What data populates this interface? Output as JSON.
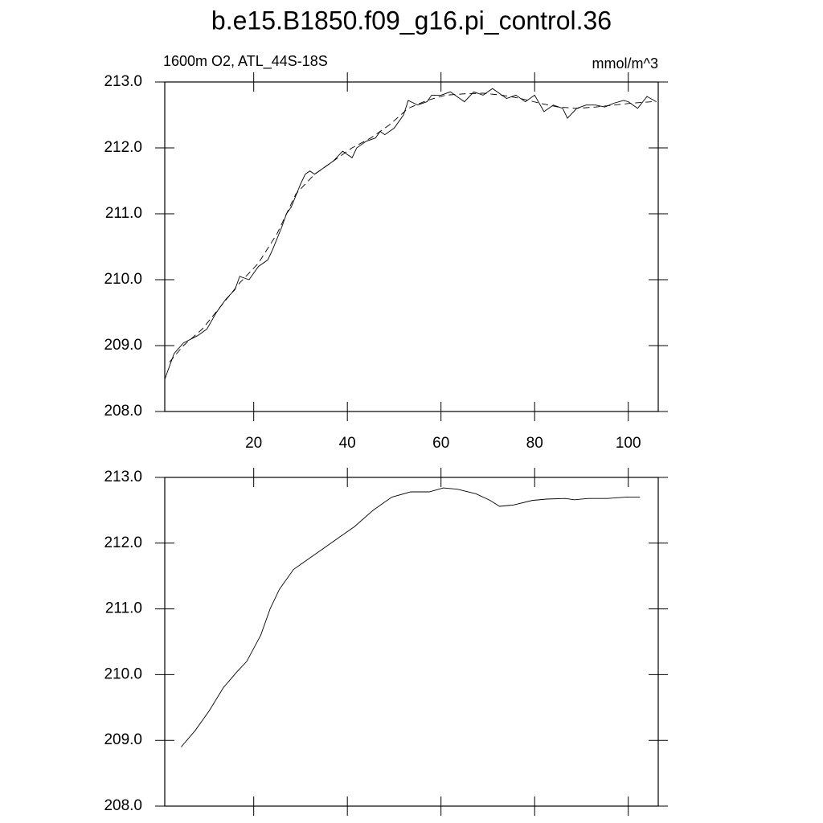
{
  "chart_data": [
    {
      "type": "line",
      "title": "b.e15.B1850.f09_g16.pi_control.36",
      "subtitle": "1600m O2, ATL_44S-18S",
      "units": "mmol/m^3",
      "xlim": [
        1,
        106.4
      ],
      "ylim": [
        208,
        213
      ],
      "xticks": [
        20,
        40,
        60,
        80,
        100
      ],
      "yticks": [
        {
          "value": 208,
          "label": "208.0"
        },
        {
          "value": 209,
          "label": "209.0"
        },
        {
          "value": 210,
          "label": "210.0"
        },
        {
          "value": 211,
          "label": "211.0"
        },
        {
          "value": 212,
          "label": "212.0"
        },
        {
          "value": 213,
          "label": "213.0"
        }
      ],
      "series": [
        {
          "color": "#000000",
          "dashed": false,
          "x": [
            1,
            3,
            5,
            8,
            10,
            12,
            14,
            16,
            17,
            19,
            21,
            23,
            24,
            26,
            27,
            28,
            30,
            31,
            32,
            33,
            35,
            37,
            39,
            40,
            41,
            42,
            44,
            46,
            47,
            48,
            50,
            52,
            53,
            55,
            57,
            58,
            60,
            62,
            64,
            65,
            67,
            69,
            70,
            71,
            72,
            74,
            76,
            78,
            80,
            82,
            84,
            86,
            87,
            89,
            91,
            93,
            95,
            97,
            99,
            100,
            102,
            104,
            106
          ],
          "values": [
            208.49,
            208.88,
            209.04,
            209.15,
            209.25,
            209.5,
            209.7,
            209.85,
            210.05,
            210.0,
            210.2,
            210.3,
            210.45,
            210.8,
            211.0,
            211.1,
            211.45,
            211.6,
            211.65,
            211.6,
            211.7,
            211.8,
            211.95,
            211.9,
            211.85,
            212.0,
            212.1,
            212.15,
            212.25,
            212.2,
            212.3,
            212.5,
            212.72,
            212.65,
            212.7,
            212.8,
            212.8,
            212.85,
            212.75,
            212.7,
            212.85,
            212.8,
            212.85,
            212.9,
            212.85,
            212.75,
            212.8,
            212.7,
            212.8,
            212.55,
            212.65,
            212.6,
            212.45,
            212.6,
            212.65,
            212.65,
            212.62,
            212.68,
            212.72,
            212.7,
            212.6,
            212.78,
            212.7
          ]
        },
        {
          "color": "#000000",
          "dashed": true,
          "x": [
            2,
            5,
            9,
            13,
            17,
            21,
            25,
            29,
            33,
            37,
            41,
            45,
            49,
            53,
            57,
            61,
            65,
            69,
            73,
            77,
            81,
            85,
            89,
            93,
            97,
            101,
            105
          ],
          "values": [
            208.75,
            209.0,
            209.25,
            209.6,
            209.95,
            210.25,
            210.7,
            211.3,
            211.6,
            211.8,
            212.0,
            212.15,
            212.35,
            212.6,
            212.72,
            212.8,
            212.82,
            212.83,
            212.8,
            212.75,
            212.68,
            212.62,
            212.6,
            212.62,
            212.65,
            212.68,
            212.7
          ]
        }
      ]
    },
    {
      "type": "line",
      "xlim": [
        1,
        106.4
      ],
      "ylim": [
        208,
        213
      ],
      "xticks": [
        20,
        40,
        60,
        80,
        100
      ],
      "yticks": [
        {
          "value": 208,
          "label": "208.0"
        },
        {
          "value": 209,
          "label": "209.0"
        },
        {
          "value": 210,
          "label": "210.0"
        },
        {
          "value": 211,
          "label": "211.0"
        },
        {
          "value": 212,
          "label": "212.0"
        },
        {
          "value": 213,
          "label": "213.0"
        }
      ],
      "series": [
        {
          "color": "#000000",
          "dashed": false,
          "x": [
            4.5,
            7.5,
            10.5,
            13.5,
            16.5,
            18.5,
            21.5,
            23.5,
            25.5,
            28.5,
            31.5,
            35.5,
            39.5,
            41.5,
            45.5,
            49.5,
            53.5,
            57.5,
            60.5,
            63.5,
            67.5,
            70.5,
            72.5,
            75.5,
            79.5,
            82.5,
            86.5,
            88.5,
            91.5,
            95.5,
            99.5,
            102.5
          ],
          "values": [
            208.9,
            209.15,
            209.45,
            209.8,
            210.05,
            210.2,
            210.6,
            211.0,
            211.3,
            211.6,
            211.75,
            211.95,
            212.15,
            212.25,
            212.5,
            212.7,
            212.78,
            212.78,
            212.84,
            212.82,
            212.75,
            212.65,
            212.56,
            212.58,
            212.65,
            212.67,
            212.68,
            212.66,
            212.68,
            212.68,
            212.7,
            212.7
          ]
        }
      ]
    }
  ]
}
